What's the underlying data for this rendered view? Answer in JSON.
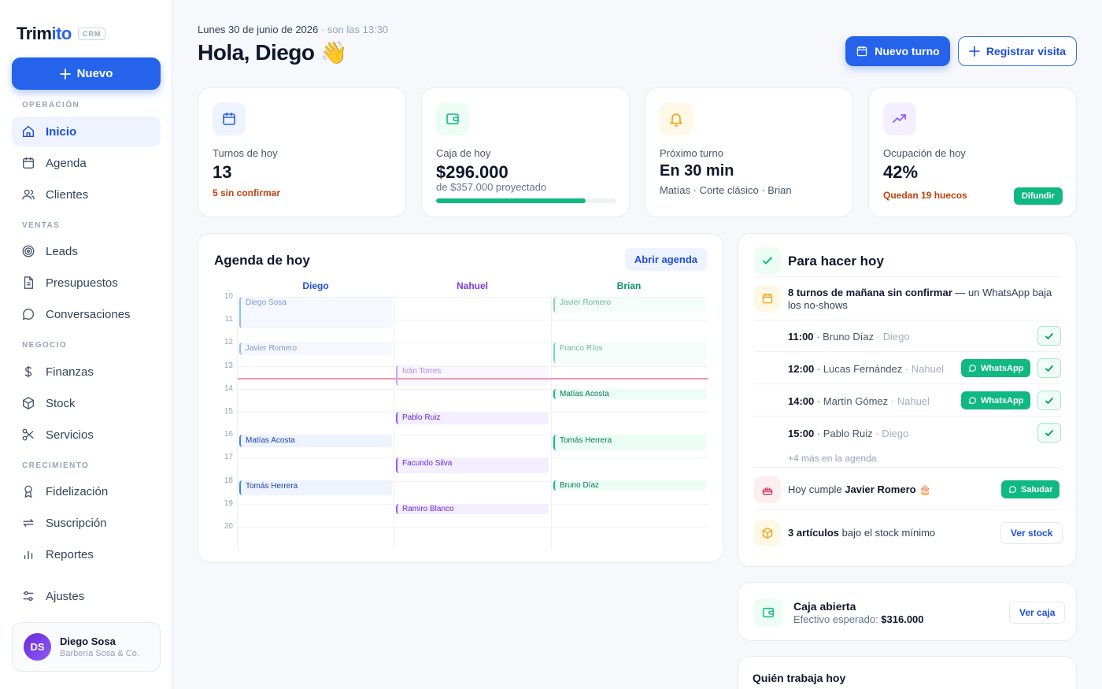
{
  "brand": {
    "name_a": "Trim",
    "name_b": "ito",
    "badge": "CRM"
  },
  "sidebar": {
    "new_label": "Nuevo",
    "sections": {
      "operacion": "OPERACIÓN",
      "ventas": "VENTAS",
      "negocio": "NEGOCIO",
      "crecimiento": "CRECIMIENTO"
    },
    "items": {
      "inicio": "Inicio",
      "agenda": "Agenda",
      "clientes": "Clientes",
      "leads": "Leads",
      "presupuestos": "Presupuestos",
      "conversaciones": "Conversaciones",
      "finanzas": "Finanzas",
      "stock": "Stock",
      "servicios": "Servicios",
      "fidelizacion": "Fidelización",
      "suscripcion": "Suscripción",
      "reportes": "Reportes",
      "ajustes": "Ajustes"
    },
    "user": {
      "initials": "DS",
      "name": "Diego Sosa",
      "business": "Barbería Sosa & Co."
    }
  },
  "header": {
    "date": "Lunes 30 de junio de 2026",
    "time": "· son las 13:30",
    "greeting": "Hola, Diego 👋",
    "primary_button": "Nuevo turno",
    "secondary_button": "Registrar visita"
  },
  "kpis": {
    "turnos": {
      "label": "Turnos de hoy",
      "value": "13",
      "sub": "5 sin confirmar"
    },
    "caja": {
      "label": "Caja de hoy",
      "value": "$296.000",
      "sub": "de $357.000 proyectado",
      "progress": 0.83
    },
    "proximo": {
      "label": "Próximo turno",
      "value": "En 30 min",
      "sub": "Matías · Corte clásico · Brian"
    },
    "ocupacion": {
      "label": "Ocupación de hoy",
      "value": "42%",
      "sub": "Quedan 19 huecos",
      "button": "Difundir"
    }
  },
  "agenda": {
    "title": "Agenda de hoy",
    "open_button": "Abrir agenda",
    "columns": {
      "diego": "Diego",
      "nahuel": "Nahuel",
      "brian": "Brian"
    },
    "hours": [
      "10",
      "11",
      "12",
      "13",
      "14",
      "15",
      "16",
      "17",
      "18",
      "19",
      "20"
    ],
    "events": {
      "d1": "Diego Sosa",
      "d2": "Javier Romero",
      "d3": "Matías Acosta",
      "d4": "Tomás Herrera",
      "n1": "Iván Torres",
      "n2": "Pablo Ruiz",
      "n3": "Facundo Silva",
      "n4": "Ramiro Blanco",
      "b1": "Javier Romero",
      "b2": "Franco Ríos",
      "b3": "Matías Acosta",
      "b4": "Tomás Herrera",
      "b5": "Bruno Díaz"
    }
  },
  "todo": {
    "title": "Para hacer hoy",
    "alert_bold": "8 turnos de mañana sin confirmar",
    "alert_rest": " — un WhatsApp baja los no-shows",
    "turns": [
      {
        "time": "11:00",
        "client": " · Bruno Díaz",
        "pro": " · Diego"
      },
      {
        "time": "12:00",
        "client": " · Lucas Fernández",
        "pro": " · Nahuel"
      },
      {
        "time": "14:00",
        "client": " · Martín Gómez",
        "pro": " · Nahuel"
      },
      {
        "time": "15:00",
        "client": " · Pablo Ruiz",
        "pro": " · Diego"
      }
    ],
    "whatsapp_label": "WhatsApp",
    "more": "+4 más en la agenda",
    "birthday_pre": "Hoy cumple ",
    "birthday_name": "Javier Romero 🎂",
    "birthday_button": "Saludar",
    "stock_bold": "3 artículos",
    "stock_rest": " bajo el stock mínimo",
    "stock_button": "Ver stock"
  },
  "caja_card": {
    "title": "Caja abierta",
    "sub_label": "Efectivo esperado: ",
    "sub_value": "$316.000",
    "button": "Ver caja"
  },
  "quien": {
    "title": "Quién trabaja hoy"
  },
  "colors": {
    "accent": "#2563eb",
    "success": "#10b981",
    "danger": "#c2410c",
    "violet": "#8b5cf6"
  }
}
